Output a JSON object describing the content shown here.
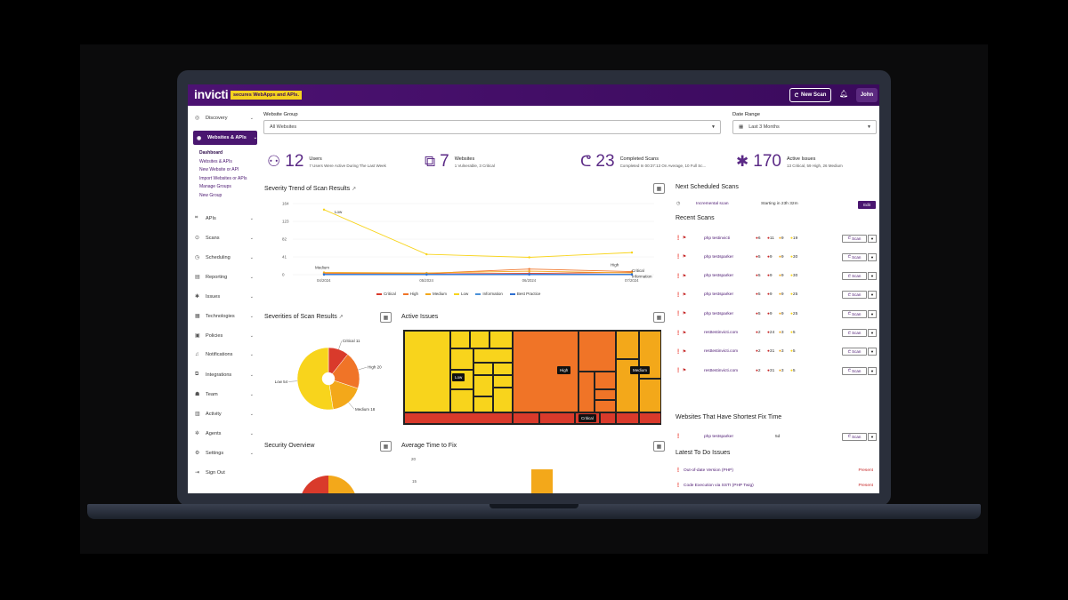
{
  "topbar": {
    "logo": "invicti",
    "tagline": "secures WebApps and APIs.",
    "new_scan": "New Scan",
    "user": "John"
  },
  "sidebar": {
    "items": [
      {
        "label": "Discovery",
        "icon": "compass-icon"
      },
      {
        "label": "Websites & APIs",
        "icon": "globe-icon"
      },
      {
        "label": "APIs",
        "icon": "api-icon"
      },
      {
        "label": "Scans",
        "icon": "scan-icon"
      },
      {
        "label": "Scheduling",
        "icon": "clock-icon"
      },
      {
        "label": "Reporting",
        "icon": "chart-icon"
      },
      {
        "label": "Issues",
        "icon": "bug-icon"
      },
      {
        "label": "Technologies",
        "icon": "stack-icon"
      },
      {
        "label": "Policies",
        "icon": "policy-icon"
      },
      {
        "label": "Notifications",
        "icon": "bell-icon"
      },
      {
        "label": "Integrations",
        "icon": "plug-icon"
      },
      {
        "label": "Team",
        "icon": "team-icon"
      },
      {
        "label": "Activity",
        "icon": "activity-icon"
      },
      {
        "label": "Agents",
        "icon": "agent-icon"
      },
      {
        "label": "Settings",
        "icon": "gear-icon"
      },
      {
        "label": "Sign Out",
        "icon": "signout-icon"
      }
    ],
    "subitems": [
      "Dashboard",
      "Websites & APIs",
      "New Website or API",
      "Import Websites or APIs",
      "Manage Groups",
      "New Group"
    ]
  },
  "filters": {
    "website_group_label": "Website Group",
    "website_group_value": "All Websites",
    "date_range_label": "Date Range",
    "date_range_value": "Last 3 Months"
  },
  "stats": [
    {
      "value": "12",
      "title": "Users",
      "desc": "7 Users Were Active During The Last Week"
    },
    {
      "value": "7",
      "title": "Websites",
      "desc": "1 Vulnerable, 3 Critical"
    },
    {
      "value": "23",
      "title": "Completed Scans",
      "desc": "Completed In 00:37:13 On Average, 10 Full Sc..."
    },
    {
      "value": "170",
      "title": "Active Issues",
      "desc": "13 Critical, 59 High, 26 Medium"
    }
  ],
  "trend": {
    "title": "Severity Trend of Scan Results",
    "point_labels": {
      "low": "Low",
      "medium": "Medium",
      "high": "High",
      "critical": "Critical",
      "information": "Information"
    }
  },
  "severities": {
    "title": "Severities of Scan Results"
  },
  "active_issues": {
    "title": "Active Issues",
    "labels": {
      "low": "Low",
      "high": "High",
      "medium": "Medium",
      "critical": "Critical"
    }
  },
  "security_overview": {
    "title": "Security Overview"
  },
  "avg_fix": {
    "title": "Average Time to Fix",
    "ticks": [
      "20",
      "15"
    ]
  },
  "next_scans": {
    "title": "Next Scheduled Scans",
    "name": "Incremental scan",
    "starting": "Starting in 23h 32m",
    "edit": "Edit"
  },
  "recent_scans": {
    "title": "Recent Scans",
    "button": "Scan",
    "rows": [
      {
        "site": "php testinvicti",
        "c1": "6",
        "c2": "11",
        "c3": "9",
        "c4": "19"
      },
      {
        "site": "php testsparker",
        "c1": "5",
        "c2": "9",
        "c3": "9",
        "c4": "30"
      },
      {
        "site": "php testsparker",
        "c1": "5",
        "c2": "9",
        "c3": "9",
        "c4": "30"
      },
      {
        "site": "php testsparker",
        "c1": "5",
        "c2": "9",
        "c3": "9",
        "c4": "25"
      },
      {
        "site": "php testsparker",
        "c1": "5",
        "c2": "9",
        "c3": "9",
        "c4": "25"
      },
      {
        "site": "resttestinvicti.com",
        "c1": "2",
        "c2": "24",
        "c3": "3",
        "c4": "5"
      },
      {
        "site": "resttestinvicti.com",
        "c1": "2",
        "c2": "31",
        "c3": "3",
        "c4": "5"
      },
      {
        "site": "resttestinvicti.com",
        "c1": "2",
        "c2": "31",
        "c3": "3",
        "c4": "5"
      }
    ]
  },
  "shortest_fix": {
    "title": "Websites That Have Shortest Fix Time",
    "site": "php testsparker",
    "value": "5d",
    "button": "Scan"
  },
  "todo": {
    "title": "Latest To Do Issues",
    "items": [
      {
        "name": "Out-of-date Version (PHP)",
        "tag": "Present"
      },
      {
        "name": "Code Execution via SSTI (PHP Twig)",
        "tag": "Present"
      }
    ]
  },
  "colors": {
    "brand": "#4a1670",
    "critical": "#d93a2b",
    "high": "#f07427",
    "medium": "#f3a81a",
    "low": "#f8d41c",
    "information": "#4a90d9"
  },
  "chart_data": [
    {
      "type": "line",
      "title": "Severity Trend of Scan Results",
      "x": [
        "04/2024",
        "05/2024",
        "06/2024",
        "07/2024"
      ],
      "ylim": [
        0,
        164
      ],
      "yticks": [
        "164",
        "123",
        "82",
        "41",
        "0"
      ],
      "series": [
        {
          "name": "Critical",
          "values": [
            2,
            2,
            3,
            5
          ]
        },
        {
          "name": "High",
          "values": [
            3,
            3,
            13,
            7
          ]
        },
        {
          "name": "Medium",
          "values": [
            5,
            4,
            8,
            4
          ]
        },
        {
          "name": "Low",
          "values": [
            150,
            47,
            40,
            51
          ]
        },
        {
          "name": "Information",
          "values": [
            1,
            1,
            1,
            1
          ]
        },
        {
          "name": "Best Practice",
          "values": [
            0,
            0,
            0,
            0
          ]
        }
      ]
    },
    {
      "type": "pie",
      "title": "Severities of Scan Results",
      "slices": [
        {
          "name": "Critical",
          "value": 11
        },
        {
          "name": "High",
          "value": 20
        },
        {
          "name": "Medium",
          "value": 18
        },
        {
          "name": "Low",
          "value": 54
        }
      ],
      "slice_labels": [
        "Critical 11",
        "High 20",
        "Medium 18",
        "Low 54"
      ]
    }
  ]
}
